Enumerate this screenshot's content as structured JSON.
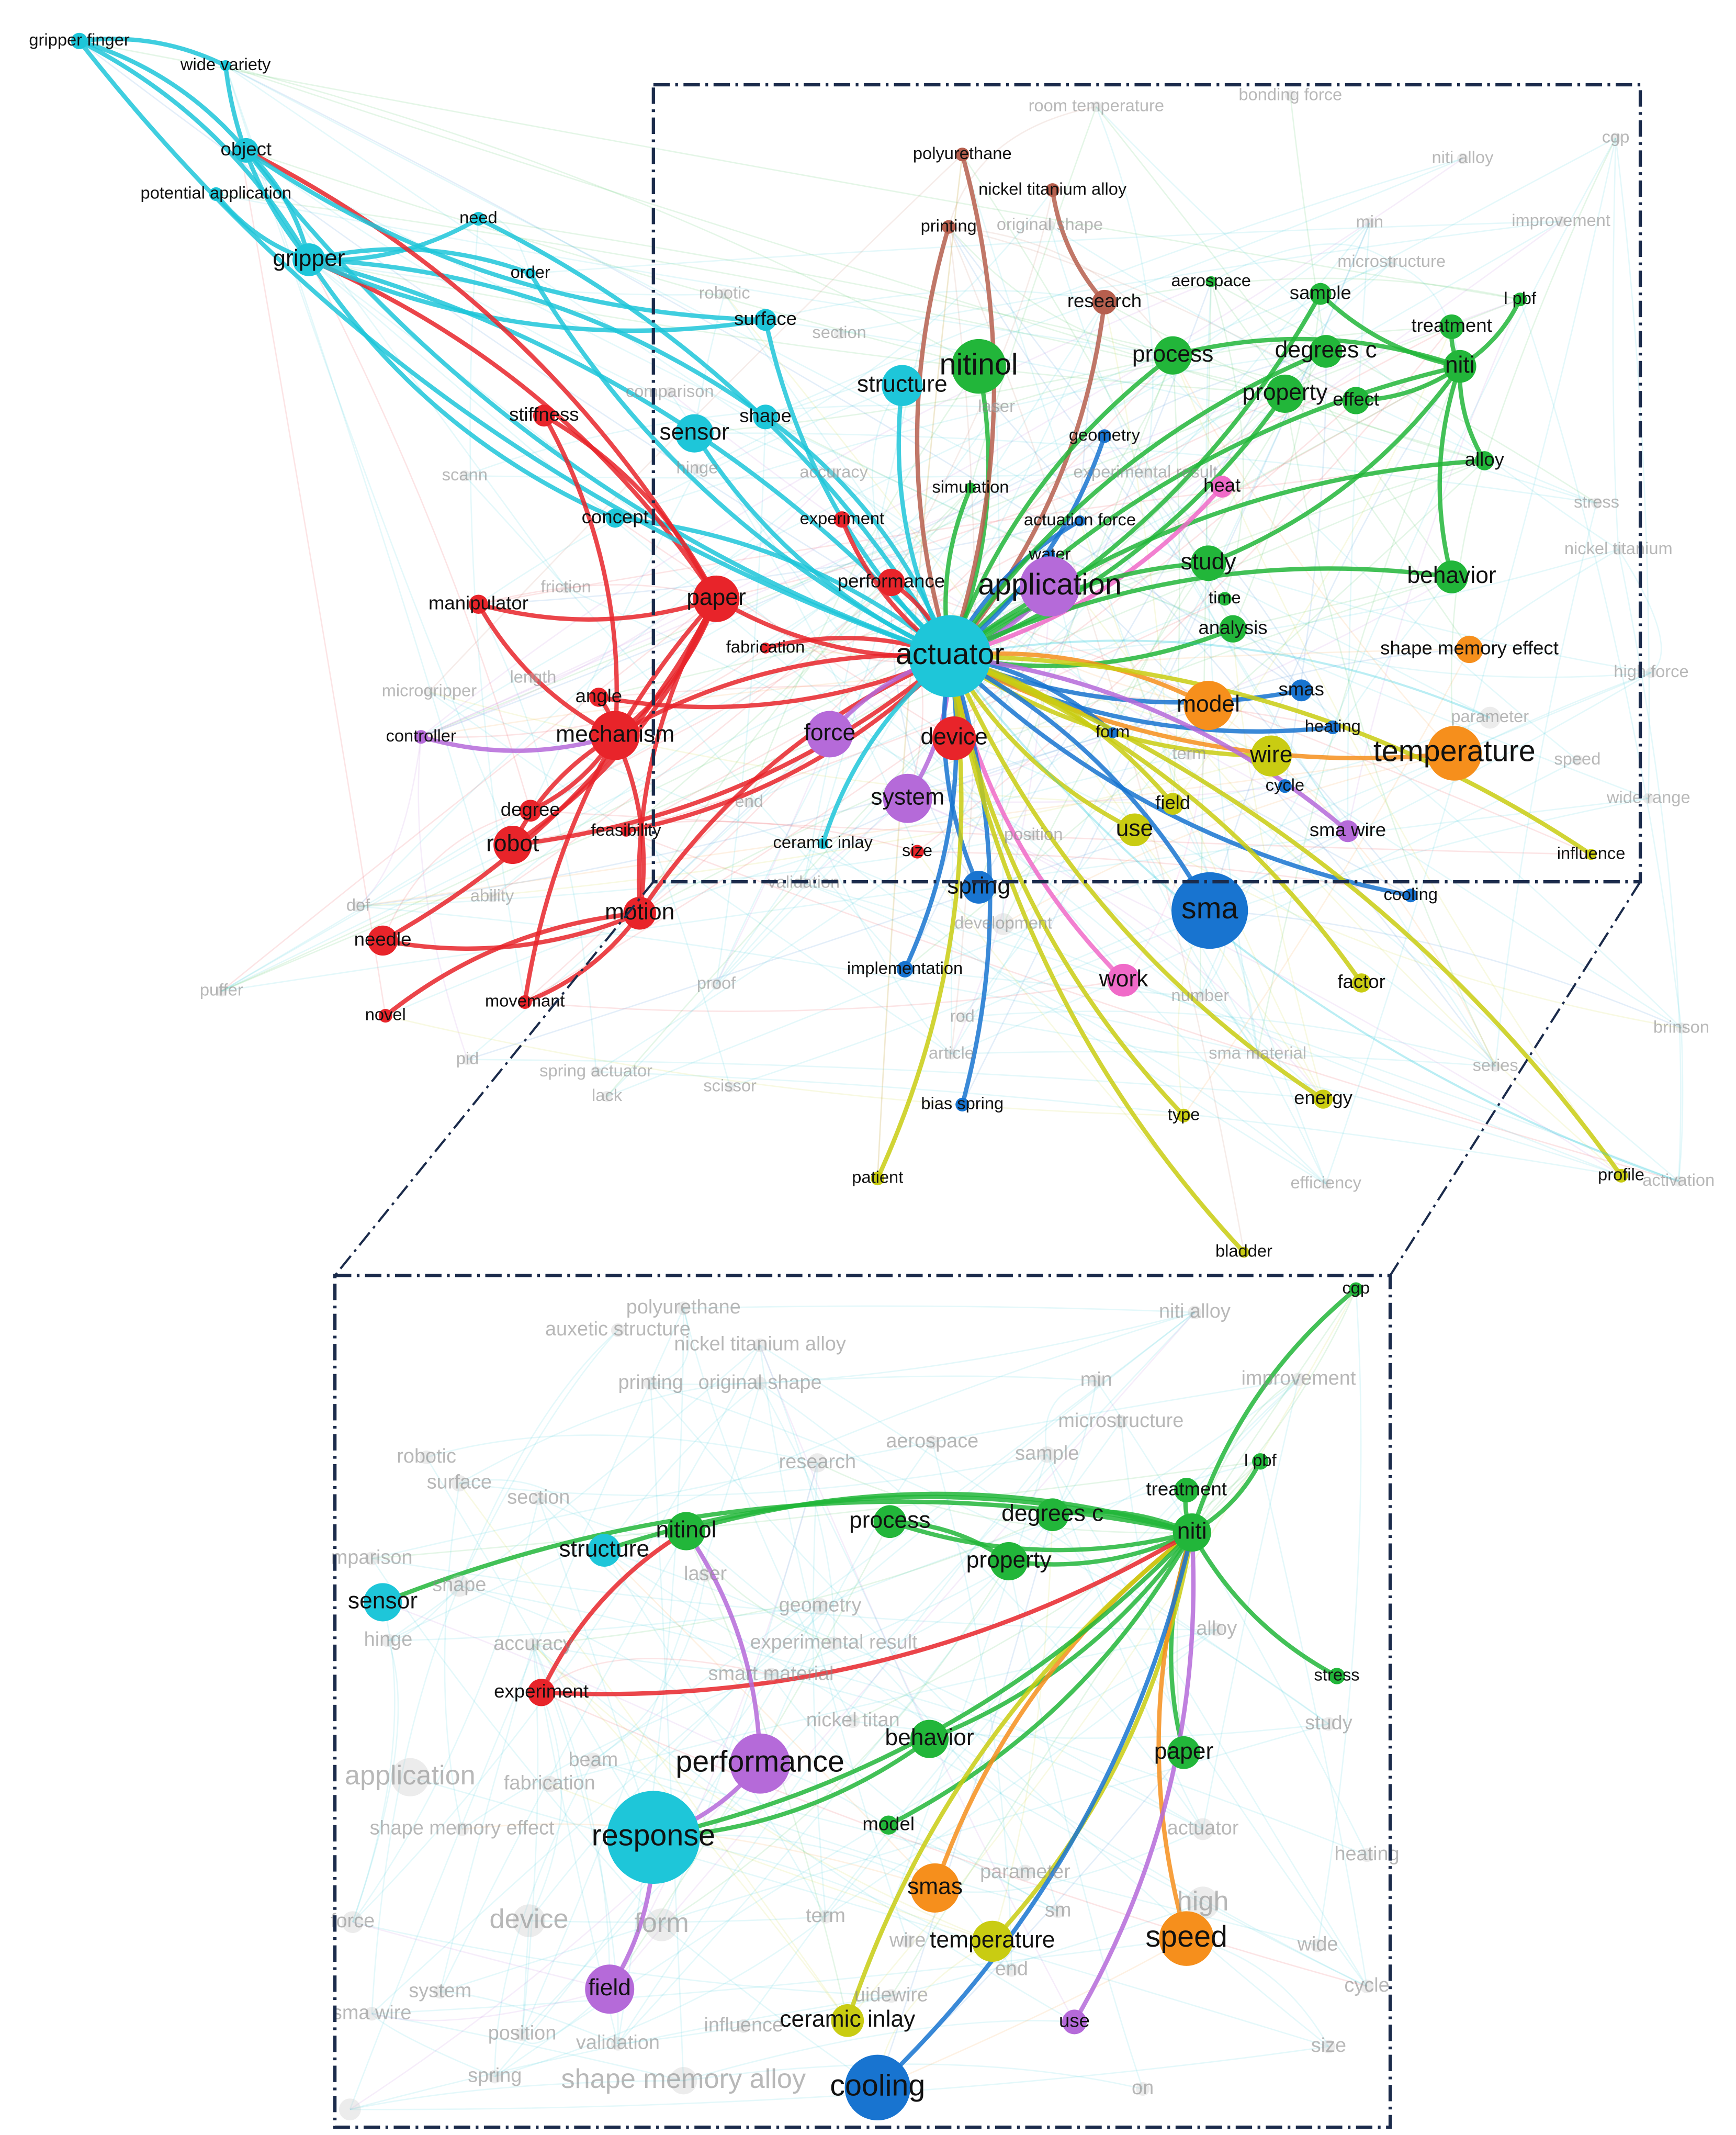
{
  "network": {
    "nodes": [
      "gripper finger",
      "wide variety",
      "object",
      "potential application",
      "need",
      "order",
      "gripper",
      "surface",
      "shape",
      "sensor",
      "stiffness",
      "concept",
      "manipulator",
      "paper",
      "fabrication",
      "controller",
      "angle",
      "mechanism",
      "degree",
      "robot",
      "needle",
      "motion",
      "novel",
      "movemant",
      "feasibility",
      "ceramic inlay",
      "size",
      "system",
      "force",
      "device",
      "actuator",
      "performance",
      "experiment",
      "nitinol",
      "structure",
      "polyurethane",
      "nickel titanium alloy",
      "printing",
      "research",
      "aerospace",
      "process",
      "sample",
      "degrees c",
      "treatment",
      "l pbf",
      "niti",
      "property",
      "effect",
      "alloy",
      "geometry",
      "simulation",
      "heat",
      "actuation force",
      "water",
      "application",
      "study",
      "time",
      "analysis",
      "behavior",
      "shape memory effect",
      "smas",
      "model",
      "heating",
      "parameter",
      "temperature",
      "form",
      "wire",
      "cycle",
      "field",
      "use",
      "sma wire",
      "influence",
      "spring",
      "sma",
      "development",
      "cooling",
      "implementation",
      "work",
      "factor",
      "energy",
      "bias spring",
      "type",
      "patient",
      "bladder",
      "profile",
      "activation",
      "room temperature",
      "bonding force",
      "cgp",
      "niti alloy",
      "min",
      "improvement",
      "microstructure",
      "original shape",
      "robotic",
      "section",
      "comparison",
      "laser",
      "hinge",
      "accuracy",
      "experimental result",
      "scann",
      "stress",
      "nickel titanium",
      "friction",
      "length",
      "microgripper",
      "high force",
      "speed",
      "wide range",
      "end",
      "term",
      "position",
      "ability",
      "dof",
      "puffer",
      "proof",
      "number",
      "pid",
      "spring actuator",
      "lack",
      "scissor",
      "rod",
      "article",
      "sma material",
      "series",
      "brinson",
      "efficiency",
      "validation"
    ]
  },
  "zoom": {
    "nodes": [
      "polyurethane",
      "auxetic structure",
      "niti alloy",
      "cgp",
      "nickel titanium alloy",
      "printing",
      "original shape",
      "min",
      "improvement",
      "microstructure",
      "robotic",
      "research",
      "aerospace",
      "sample",
      "l pbf",
      "treatment",
      "surface",
      "section",
      "nitinol",
      "process",
      "degrees c",
      "niti",
      "structure",
      "mparison",
      "property",
      "shape",
      "sensor",
      "laser",
      "geometry",
      "alloy",
      "hinge",
      "accuracy",
      "experimental result",
      "smart material",
      "experiment",
      "stress",
      "nickel titan",
      "study",
      "behavior",
      "paper",
      "application",
      "performance",
      "beam",
      "fabrication",
      "shape memory effect",
      "actuator",
      "response",
      "model",
      "smas",
      "parameter",
      "high",
      "heating",
      "sm",
      "force",
      "device",
      "form",
      "term",
      "wire",
      "temperature",
      "speed",
      "wide",
      "cycle",
      "end",
      "system",
      "field",
      "uidewire",
      "sma wire",
      "use",
      "ceramic inlay",
      "position",
      "influence",
      "size",
      "validation",
      "spring",
      "shape memory alloy",
      "cooling",
      "on"
    ]
  }
}
